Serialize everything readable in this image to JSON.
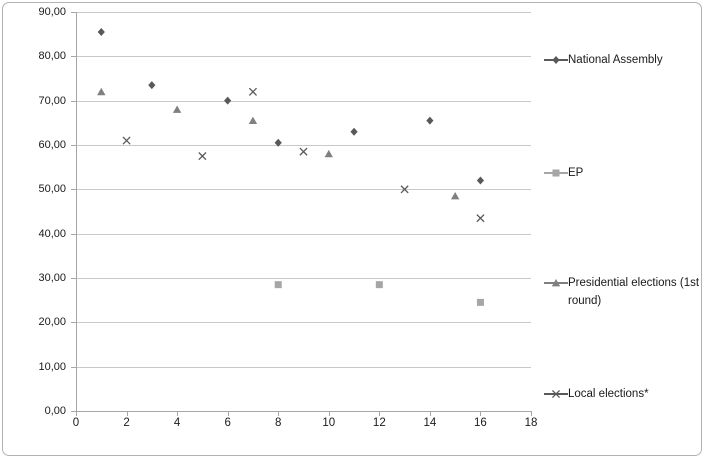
{
  "chart_data": {
    "type": "scatter",
    "title": "",
    "xlabel": "",
    "ylabel": "",
    "x_axis": {
      "min": 0,
      "max": 18,
      "tick_step": 2,
      "tick_labels": [
        "0",
        "2",
        "4",
        "6",
        "8",
        "10",
        "12",
        "14",
        "16",
        "18"
      ]
    },
    "y_axis": {
      "min": 0,
      "max": 90,
      "tick_step": 10,
      "tick_labels": [
        "0,00",
        "10,00",
        "20,00",
        "30,00",
        "40,00",
        "50,00",
        "60,00",
        "70,00",
        "80,00",
        "90,00"
      ],
      "number_format": "decimal-comma"
    },
    "gridlines": "horizontal",
    "legend_position": "right",
    "series": [
      {
        "name": "National Assembly",
        "marker": "diamond",
        "color": "#595959",
        "points": [
          [
            1,
            85.5
          ],
          [
            3,
            73.5
          ],
          [
            6,
            70
          ],
          [
            8,
            60.5
          ],
          [
            11,
            63
          ],
          [
            14,
            65.5
          ],
          [
            16,
            52
          ]
        ]
      },
      {
        "name": "EP",
        "marker": "square",
        "color": "#a6a6a6",
        "points": [
          [
            8,
            28.5
          ],
          [
            12,
            28.5
          ],
          [
            16,
            24.5
          ]
        ]
      },
      {
        "name": "Presidential elections (1st round)",
        "marker": "triangle",
        "color": "#808080",
        "points": [
          [
            1,
            72
          ],
          [
            4,
            68
          ],
          [
            7,
            65.5
          ],
          [
            10,
            58
          ],
          [
            15,
            48.5
          ]
        ]
      },
      {
        "name": "Local elections*",
        "marker": "x",
        "color": "#595959",
        "points": [
          [
            2,
            61
          ],
          [
            5,
            57.5
          ],
          [
            7,
            72
          ],
          [
            9,
            58.5
          ],
          [
            13,
            50
          ],
          [
            16,
            43.5
          ]
        ]
      }
    ]
  },
  "colors": {
    "background": "#ffffff",
    "border": "#b3b3b3",
    "gridline": "#c9c9c9",
    "axis": "#a6a6a6",
    "text": "#1a1a1a"
  }
}
